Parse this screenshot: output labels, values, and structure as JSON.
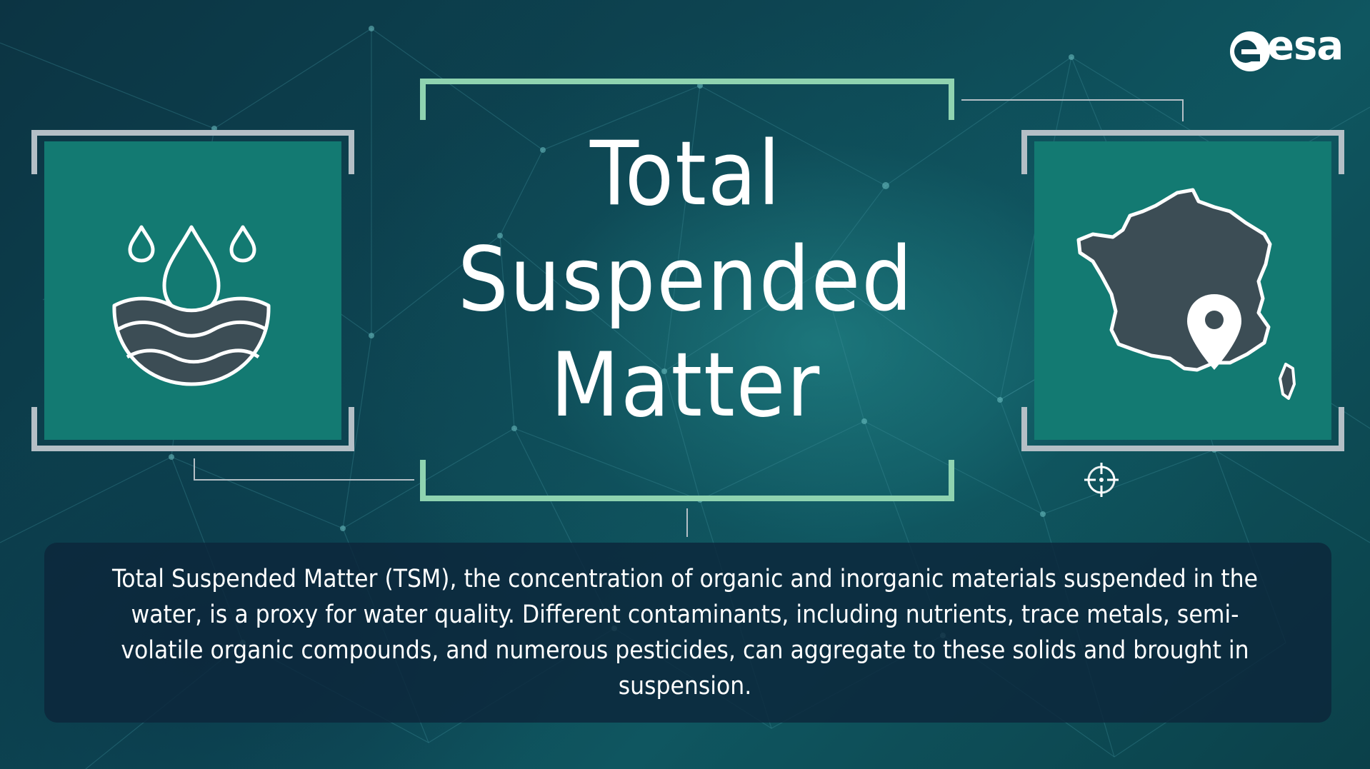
{
  "title_lines": [
    "Total",
    "Suspended",
    "Matter"
  ],
  "description": "Total Suspended Matter (TSM), the concentration of organic and inorganic materials suspended in the water, is a proxy for water quality. Different contaminants, including nutrients, trace metals, semi-volatile organic compounds, and numerous pesticides, can aggregate to these solids and brought in suspension.",
  "logo": {
    "text": "esa"
  },
  "icons": {
    "left_panel": "water-drops-icon",
    "right_panel": "france-map-pin-icon",
    "target": "crosshair-icon"
  },
  "colors": {
    "panel": "#137a72",
    "frame_grey": "#b4bfc6",
    "frame_green": "#8fd3b0",
    "icon_fill": "#3c4d55"
  }
}
